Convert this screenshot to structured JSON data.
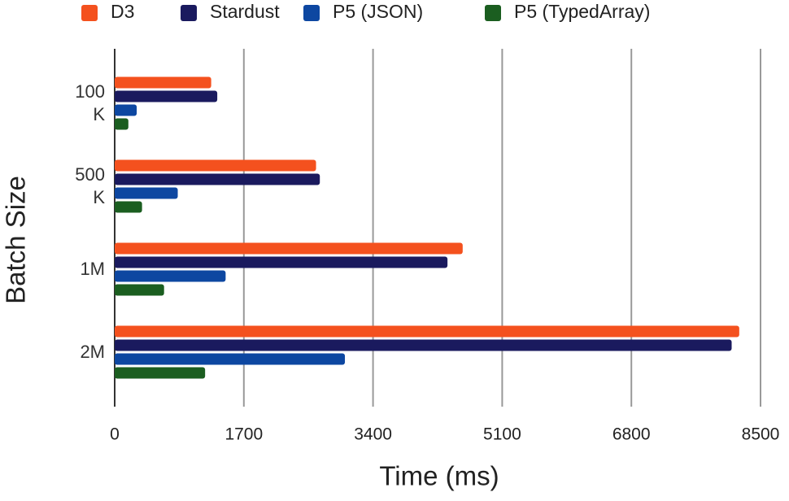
{
  "chart_data": {
    "type": "hbar",
    "xlabel": "Time (ms)",
    "ylabel": "Batch Size",
    "categories": [
      "100 K",
      "500 K",
      "1M",
      "2M"
    ],
    "series": [
      {
        "name": "D3",
        "color": "#f4511e",
        "values": [
          1270,
          2650,
          4580,
          8220
        ]
      },
      {
        "name": "Stardust",
        "color": "#1a1a5e",
        "values": [
          1350,
          2700,
          4380,
          8120
        ]
      },
      {
        "name": "P5 (JSON)",
        "color": "#0d47a1",
        "values": [
          290,
          830,
          1460,
          3030
        ]
      },
      {
        "name": "P5 (TypedArray)",
        "color": "#1b5e20",
        "values": [
          180,
          360,
          650,
          1190
        ]
      }
    ],
    "xlim": [
      0,
      8500
    ],
    "xticks": [
      0,
      1700,
      3400,
      5100,
      6800,
      8500
    ],
    "grid": true,
    "legend": "top"
  }
}
